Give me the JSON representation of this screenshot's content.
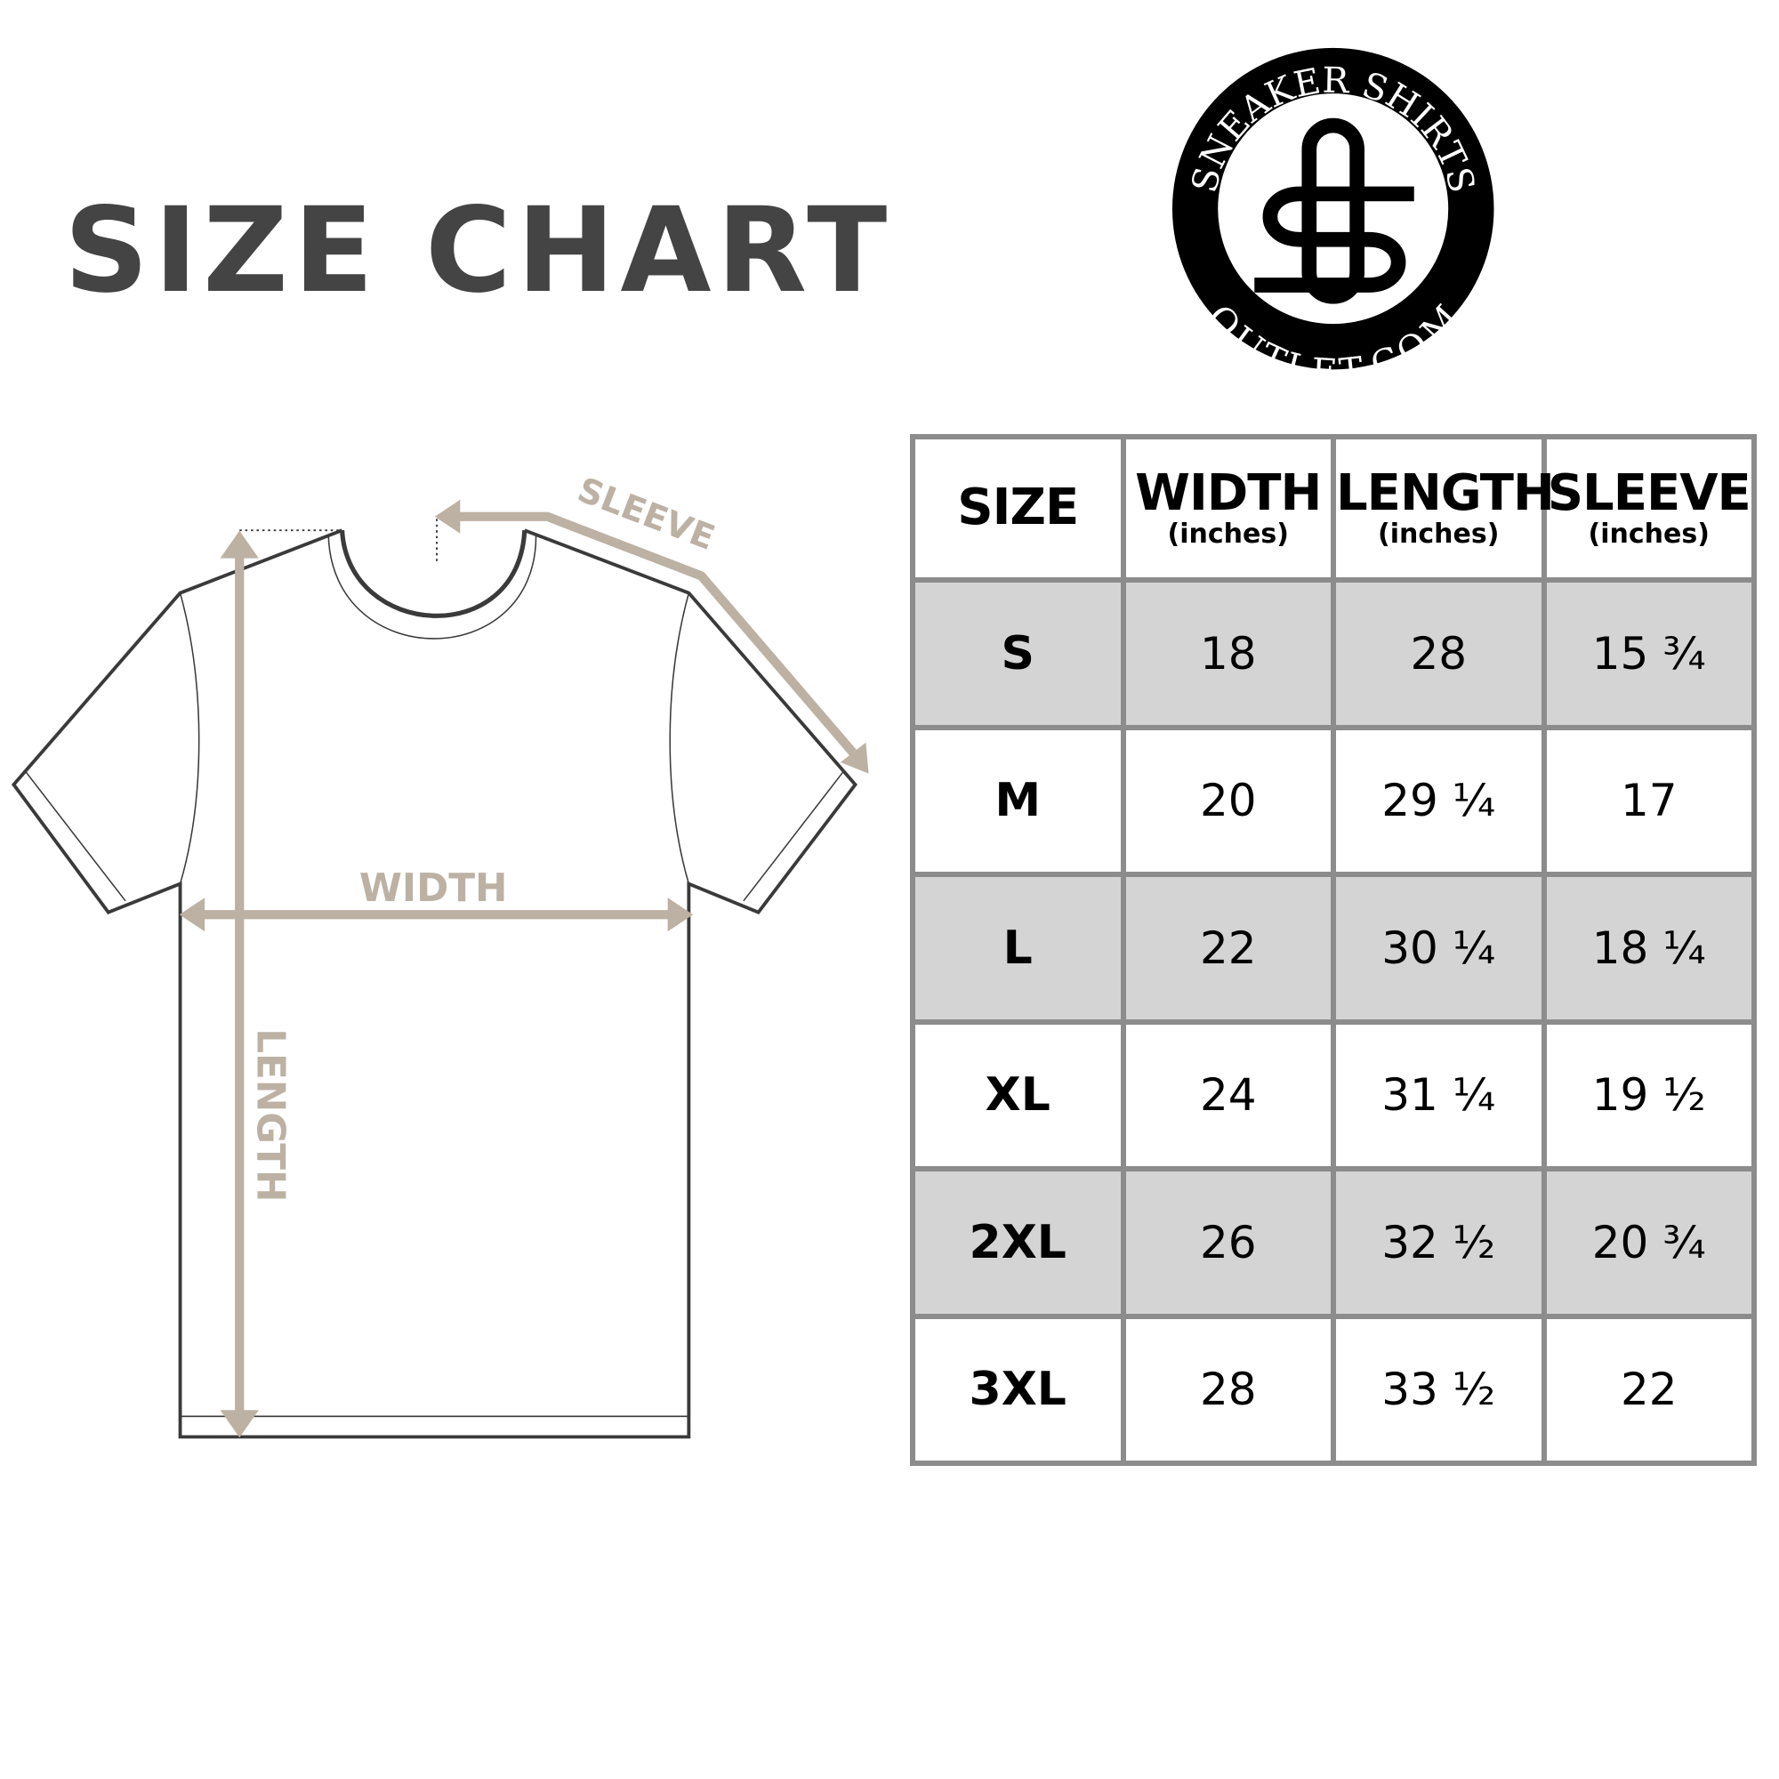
{
  "title": "SIZE CHART",
  "logo": {
    "top_text": "SNEAKER SHIRTS",
    "bottom_text": "OUTLET.COM",
    "monogram": "SO"
  },
  "diagram": {
    "labels": {
      "sleeve": "SLEEVE",
      "width": "WIDTH",
      "length": "LENGTH"
    },
    "arrow_color": "#bcb1a3",
    "outline_color": "#3a3a3a"
  },
  "table": {
    "headers": [
      {
        "label": "SIZE",
        "unit": ""
      },
      {
        "label": "WIDTH",
        "unit": "(inches)"
      },
      {
        "label": "LENGTH",
        "unit": "(inches)"
      },
      {
        "label": "SLEEVE",
        "unit": "(inches)"
      }
    ],
    "rows": [
      {
        "size": "S",
        "width": "18",
        "length": "28",
        "sleeve": "15 ¾",
        "shaded": true
      },
      {
        "size": "M",
        "width": "20",
        "length": "29 ¼",
        "sleeve": "17",
        "shaded": false
      },
      {
        "size": "L",
        "width": "22",
        "length": "30 ¼",
        "sleeve": "18 ¼",
        "shaded": true
      },
      {
        "size": "XL",
        "width": "24",
        "length": "31 ¼",
        "sleeve": "19 ½",
        "shaded": false
      },
      {
        "size": "2XL",
        "width": "26",
        "length": "32 ½",
        "sleeve": "20 ¾",
        "shaded": true
      },
      {
        "size": "3XL",
        "width": "28",
        "length": "33 ½",
        "sleeve": "22",
        "shaded": false
      }
    ],
    "shade_color": "#d4d4d4",
    "border_color": "#8c8c8c"
  }
}
